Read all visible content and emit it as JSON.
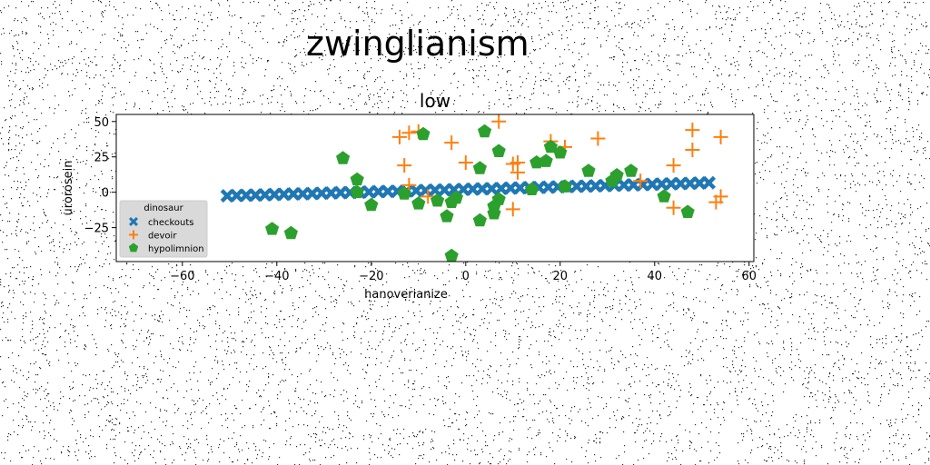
{
  "figure": {
    "suptitle": "zwinglianism"
  },
  "chart_data": {
    "type": "scatter",
    "title": "low",
    "xlabel": "hanoverianize",
    "ylabel": "urorosein",
    "xlim": [
      -74,
      61
    ],
    "ylim": [
      -49,
      55
    ],
    "xticks": [
      -60,
      -40,
      -20,
      0,
      20,
      40,
      60
    ],
    "yticks": [
      50,
      25,
      0,
      -25
    ],
    "grid": false,
    "legend": {
      "title": "dinosaur",
      "placement": "lower-left"
    },
    "series": [
      {
        "name": "checkouts",
        "marker": "X",
        "color": "#1f77b4",
        "x": [
          -50.5,
          -48.5,
          -46.5,
          -44.5,
          -42.5,
          -40.5,
          -38.5,
          -36.5,
          -34.5,
          -32.5,
          -30.5,
          -28.5,
          -26.5,
          -24.5,
          -22.5,
          -20.5,
          -18.5,
          -16.5,
          -14.5,
          -12.5,
          -10.5,
          -8.5,
          -6.5,
          -4.5,
          -2.5,
          -0.5,
          1.5,
          3.5,
          5.5,
          7.5,
          9.5,
          11.5,
          13.5,
          15.5,
          17.5,
          19.5,
          21.5,
          23.5,
          25.5,
          27.5,
          29.5,
          31.5,
          33.5,
          35.5,
          37.5,
          39.5,
          41.5,
          43.5,
          45.5,
          47.5,
          49.5,
          51.5
        ],
        "y": [
          -2.5,
          -2.3,
          -2.1,
          -2.0,
          -1.8,
          -1.6,
          -1.4,
          -1.2,
          -1.1,
          -0.9,
          -0.7,
          -0.5,
          -0.3,
          -0.2,
          0.0,
          0.2,
          0.4,
          0.6,
          0.7,
          0.9,
          1.1,
          1.3,
          1.5,
          1.6,
          1.8,
          2.0,
          2.2,
          2.4,
          2.5,
          2.7,
          2.9,
          3.1,
          3.3,
          3.4,
          3.6,
          3.8,
          4.0,
          4.2,
          4.3,
          4.5,
          4.7,
          4.9,
          5.1,
          5.2,
          5.4,
          5.6,
          5.8,
          6.0,
          6.1,
          6.3,
          6.5,
          6.7
        ]
      },
      {
        "name": "devoir",
        "marker": "+",
        "color": "#ff7f0e",
        "x": [
          -14,
          -12,
          -10,
          -13,
          -8,
          -3,
          0,
          -12,
          7,
          10,
          11,
          11,
          18,
          21,
          28,
          44,
          48,
          48,
          54,
          53,
          54,
          44,
          37,
          10
        ],
        "y": [
          39,
          42,
          43,
          19,
          -3,
          35,
          21,
          5,
          50,
          20,
          14,
          21,
          36,
          32,
          38,
          19,
          44,
          30,
          39,
          -7,
          -3,
          -11,
          8,
          -12
        ],
        "size": 20
      },
      {
        "name": "hypolimnion",
        "marker": "pentagon",
        "color": "#2ca02c",
        "x": [
          -41,
          -37,
          -26,
          -23,
          -23,
          -9,
          -10,
          -6,
          -4,
          -3,
          -3,
          -2,
          3,
          3,
          4,
          6,
          6,
          7,
          7,
          14,
          15,
          17,
          18,
          20,
          21,
          26,
          31,
          32,
          35,
          42,
          47,
          -13,
          -20
        ],
        "y": [
          -26,
          -29,
          24,
          9,
          0,
          41,
          -8,
          -6,
          -17,
          -7,
          -45,
          -4,
          -20,
          17,
          43,
          -15,
          -10,
          29,
          -5,
          2,
          21,
          22,
          32,
          28,
          4,
          15,
          8,
          12,
          15,
          -3,
          -14,
          -1,
          -9
        ],
        "size": 12
      }
    ]
  }
}
